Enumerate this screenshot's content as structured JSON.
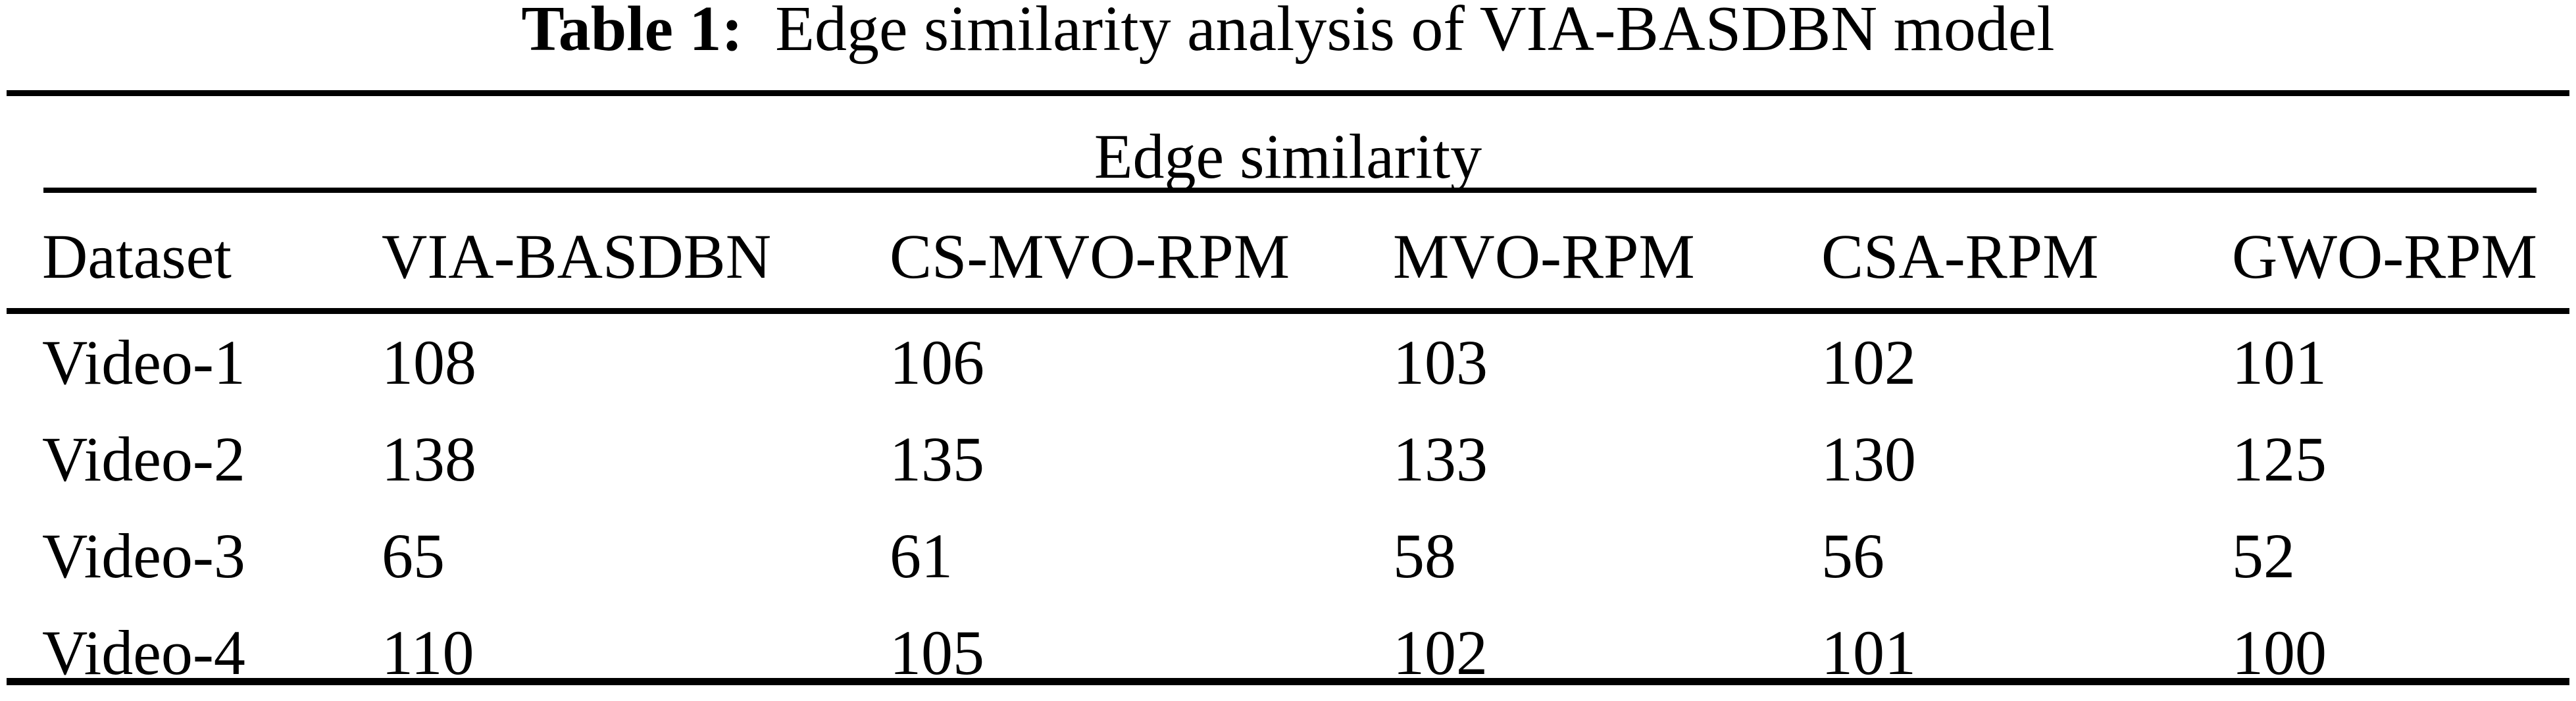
{
  "caption": {
    "label": "Table 1:",
    "text": "Edge similarity analysis of VIA-BASDBN model"
  },
  "chart_data": {
    "type": "table",
    "title": "Table 1: Edge similarity analysis of VIA-BASDBN model",
    "group_header": "Edge similarity",
    "columns": [
      "Dataset",
      "VIA-BASDBN",
      "CS-MVO-RPM",
      "MVO-RPM",
      "CSA-RPM",
      "GWO-RPM"
    ],
    "rows": [
      [
        "Video-1",
        108,
        106,
        103,
        102,
        101
      ],
      [
        "Video-2",
        138,
        135,
        133,
        130,
        125
      ],
      [
        "Video-3",
        65,
        61,
        58,
        56,
        52
      ],
      [
        "Video-4",
        110,
        105,
        102,
        101,
        100
      ]
    ]
  },
  "colors": {
    "background": "#ffffff",
    "text": "#000000",
    "rule": "#000000"
  }
}
